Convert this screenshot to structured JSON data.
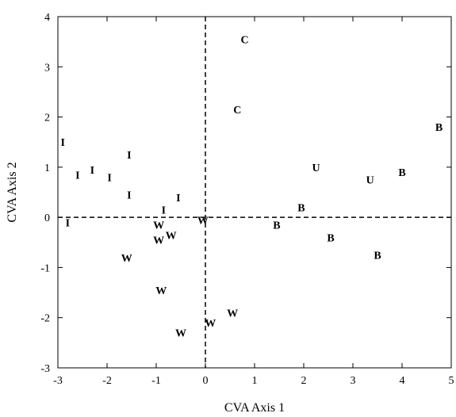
{
  "chart_data": {
    "type": "scatter",
    "title": "",
    "xlabel": "CVA Axis 1",
    "ylabel": "CVA Axis 2",
    "xlim": [
      -3,
      5
    ],
    "ylim": [
      -3,
      4
    ],
    "x_ticks": [
      -3,
      -2,
      -1,
      0,
      1,
      2,
      3,
      4,
      5
    ],
    "y_ticks": [
      -3,
      -2,
      -1,
      0,
      1,
      2,
      3,
      4
    ],
    "grid": false,
    "reference_lines": {
      "x": 0,
      "y": 0,
      "style": "dashed"
    },
    "points": [
      {
        "label": "C",
        "x": 0.8,
        "y": 3.55
      },
      {
        "label": "C",
        "x": 0.65,
        "y": 2.15
      },
      {
        "label": "I",
        "x": -2.9,
        "y": 1.5
      },
      {
        "label": "I",
        "x": -2.6,
        "y": 0.85
      },
      {
        "label": "I",
        "x": -2.3,
        "y": 0.95
      },
      {
        "label": "I",
        "x": -1.95,
        "y": 0.8
      },
      {
        "label": "I",
        "x": -1.55,
        "y": 1.25
      },
      {
        "label": "I",
        "x": -1.55,
        "y": 0.45
      },
      {
        "label": "I",
        "x": -0.55,
        "y": 0.4
      },
      {
        "label": "I",
        "x": -0.85,
        "y": 0.15
      },
      {
        "label": "I",
        "x": -2.8,
        "y": -0.1
      },
      {
        "label": "W",
        "x": -0.05,
        "y": -0.05
      },
      {
        "label": "W",
        "x": -0.95,
        "y": -0.15
      },
      {
        "label": "W",
        "x": -0.95,
        "y": -0.45
      },
      {
        "label": "W",
        "x": -0.7,
        "y": -0.35
      },
      {
        "label": "W",
        "x": -1.6,
        "y": -0.8
      },
      {
        "label": "W",
        "x": -0.9,
        "y": -1.45
      },
      {
        "label": "W",
        "x": -0.5,
        "y": -2.3
      },
      {
        "label": "W",
        "x": 0.1,
        "y": -2.1
      },
      {
        "label": "W",
        "x": 0.55,
        "y": -1.9
      },
      {
        "label": "U",
        "x": 2.25,
        "y": 1.0
      },
      {
        "label": "U",
        "x": 3.35,
        "y": 0.75
      },
      {
        "label": "B",
        "x": 4.75,
        "y": 1.8
      },
      {
        "label": "B",
        "x": 4.0,
        "y": 0.9
      },
      {
        "label": "B",
        "x": 1.95,
        "y": 0.2
      },
      {
        "label": "B",
        "x": 1.45,
        "y": -0.15
      },
      {
        "label": "B",
        "x": 2.55,
        "y": -0.4
      },
      {
        "label": "B",
        "x": 3.5,
        "y": -0.75
      }
    ]
  }
}
